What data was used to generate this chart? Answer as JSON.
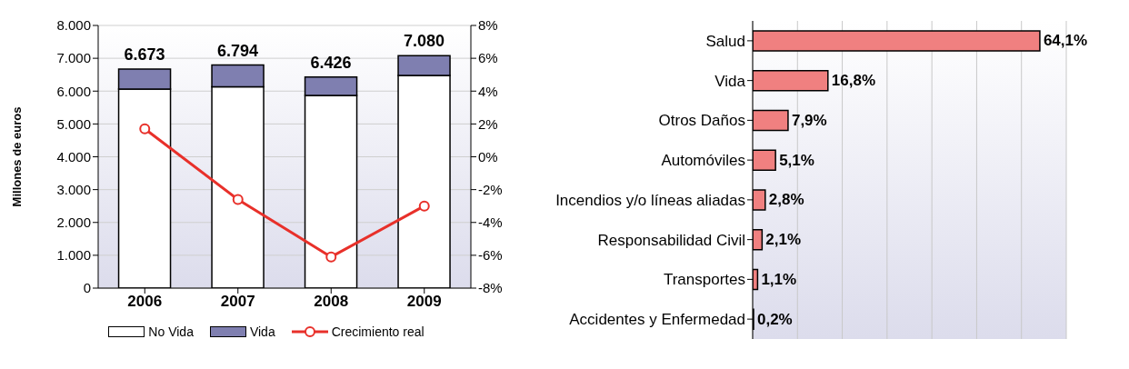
{
  "chart_data": [
    {
      "type": "bar",
      "categories": [
        "2006",
        "2007",
        "2008",
        "2009"
      ],
      "stacked": true,
      "ylabel": "Millones de euros",
      "series": [
        {
          "name": "No Vida",
          "color": "#ffffff",
          "values": [
            6060,
            6130,
            5870,
            6480
          ]
        },
        {
          "name": "Vida",
          "color": "#7f7fb0",
          "values": [
            613,
            664,
            556,
            600
          ]
        },
        {
          "name": "Crecimiento real",
          "type": "line",
          "axis": "y2",
          "color": "#e8302a",
          "values": [
            1.7,
            -2.6,
            -6.1,
            -3.0
          ]
        }
      ],
      "totals": [
        "6.673",
        "6.794",
        "6.426",
        "7.080"
      ],
      "ylim": [
        0,
        8000
      ],
      "yticks": [
        {
          "value": 0,
          "label": "0"
        },
        {
          "value": 1000,
          "label": "1.000"
        },
        {
          "value": 2000,
          "label": "2.000"
        },
        {
          "value": 3000,
          "label": "3.000"
        },
        {
          "value": 4000,
          "label": "4.000"
        },
        {
          "value": 5000,
          "label": "5.000"
        },
        {
          "value": 6000,
          "label": "6.000"
        },
        {
          "value": 7000,
          "label": "7.000"
        },
        {
          "value": 8000,
          "label": "8.000"
        }
      ],
      "y2lim": [
        -8,
        8
      ],
      "y2ticks": [
        {
          "value": -8,
          "label": "-8%"
        },
        {
          "value": -6,
          "label": "-6%"
        },
        {
          "value": -4,
          "label": "-4%"
        },
        {
          "value": -2,
          "label": "-2%"
        },
        {
          "value": 0,
          "label": "0%"
        },
        {
          "value": 2,
          "label": "2%"
        },
        {
          "value": 4,
          "label": "4%"
        },
        {
          "value": 6,
          "label": "6%"
        },
        {
          "value": 8,
          "label": "8%"
        }
      ],
      "grid": "y",
      "legend": "bottom",
      "marker": "circle"
    },
    {
      "type": "bar",
      "orientation": "horizontal",
      "categories": [
        "Salud",
        "Vida",
        "Otros Daños",
        "Automóviles",
        "Incendios y/o líneas aliadas",
        "Responsabilidad Civil",
        "Transportes",
        "Accidentes y Enfermedad"
      ],
      "values": [
        64.1,
        16.8,
        7.9,
        5.1,
        2.8,
        2.1,
        1.1,
        0.2
      ],
      "colors": [
        "#f08080",
        "#f08080",
        "#f08080",
        "#f08080",
        "#f08080",
        "#f08080",
        "#f08080",
        "#f08080"
      ],
      "value_labels": [
        "64,1%",
        "16,8%",
        "7,9%",
        "5,1%",
        "2,8%",
        "2,1%",
        "1,1%",
        "0,2%"
      ],
      "xlim": [
        0,
        70
      ],
      "xticks": [
        {
          "value": 0,
          "label": null
        },
        {
          "value": 10,
          "label": null
        },
        {
          "value": 20,
          "label": null
        },
        {
          "value": 30,
          "label": null
        },
        {
          "value": 40,
          "label": null
        },
        {
          "value": 50,
          "label": null
        },
        {
          "value": 60,
          "label": null
        },
        {
          "value": 70,
          "label": null
        }
      ],
      "grid": "x",
      "tick_labels": "y"
    }
  ]
}
